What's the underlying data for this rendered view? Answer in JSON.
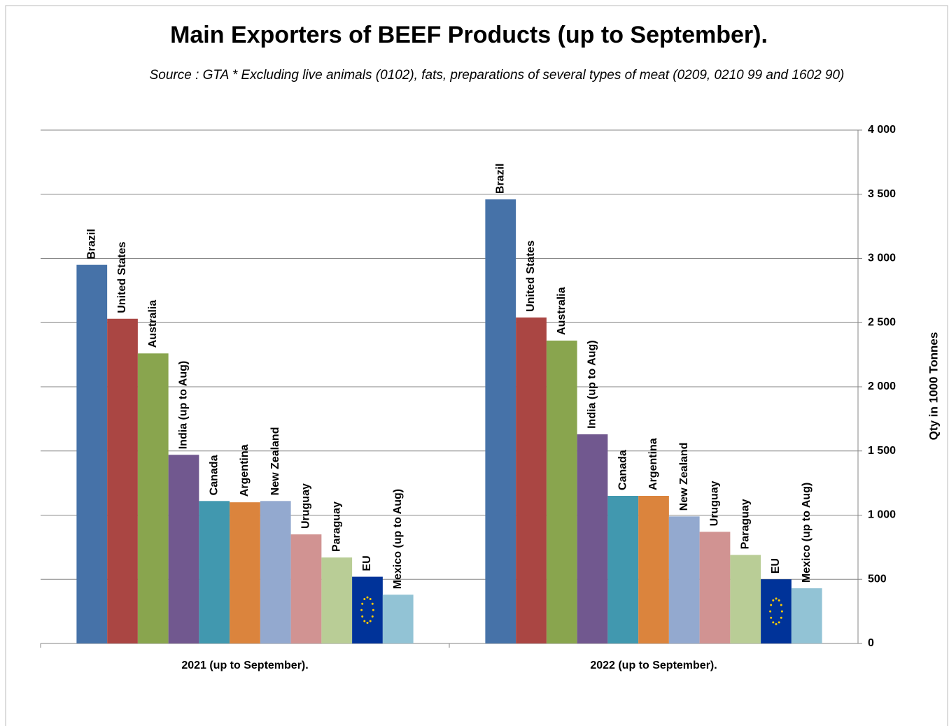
{
  "chart_data": {
    "type": "bar",
    "title": "Main Exporters of BEEF Products (up to September).",
    "subtitle": "Source : GTA * Excluding live animals (0102), fats, preparations of several types of meat (0209, 0210 99 and 1602 90)",
    "y_axis_label": "Qty in 1000 Tonnes",
    "categories": [
      "2021 (up to September).",
      "2022 (up to September)."
    ],
    "series": [
      {
        "name": "Brazil",
        "color": "#4672a8",
        "values": [
          2950,
          3460
        ]
      },
      {
        "name": "United States",
        "color": "#aa4643",
        "values": [
          2530,
          2540
        ]
      },
      {
        "name": "Australia",
        "color": "#89a54e",
        "values": [
          2260,
          2360
        ]
      },
      {
        "name": "India (up to Aug)",
        "color": "#71588f",
        "values": [
          1470,
          1630
        ]
      },
      {
        "name": "Canada",
        "color": "#4198af",
        "values": [
          1110,
          1150
        ]
      },
      {
        "name": "Argentina",
        "color": "#db843d",
        "values": [
          1100,
          1150
        ]
      },
      {
        "name": "New Zealand",
        "color": "#93a9cf",
        "values": [
          1110,
          990
        ]
      },
      {
        "name": "Uruguay",
        "color": "#d19392",
        "values": [
          850,
          870
        ]
      },
      {
        "name": "Paraguay",
        "color": "#b9cd96",
        "values": [
          670,
          690
        ]
      },
      {
        "name": "EU",
        "color": "#003399",
        "values": [
          520,
          500
        ]
      },
      {
        "name": "Mexico (up to Aug)",
        "color": "#92c3d5",
        "values": [
          380,
          430
        ]
      }
    ],
    "ylim": [
      0,
      4000
    ],
    "yticks": [
      0,
      500,
      {
        "value": 1000,
        "label": "1 000"
      },
      {
        "value": 1500,
        "label": "1 500"
      },
      {
        "value": 2000,
        "label": "2 000"
      },
      {
        "value": 2500,
        "label": "2 500"
      },
      {
        "value": 3000,
        "label": "3 000"
      },
      {
        "value": 3500,
        "label": "3 500"
      },
      {
        "value": 4000,
        "label": "4 000"
      }
    ],
    "grid": true
  }
}
